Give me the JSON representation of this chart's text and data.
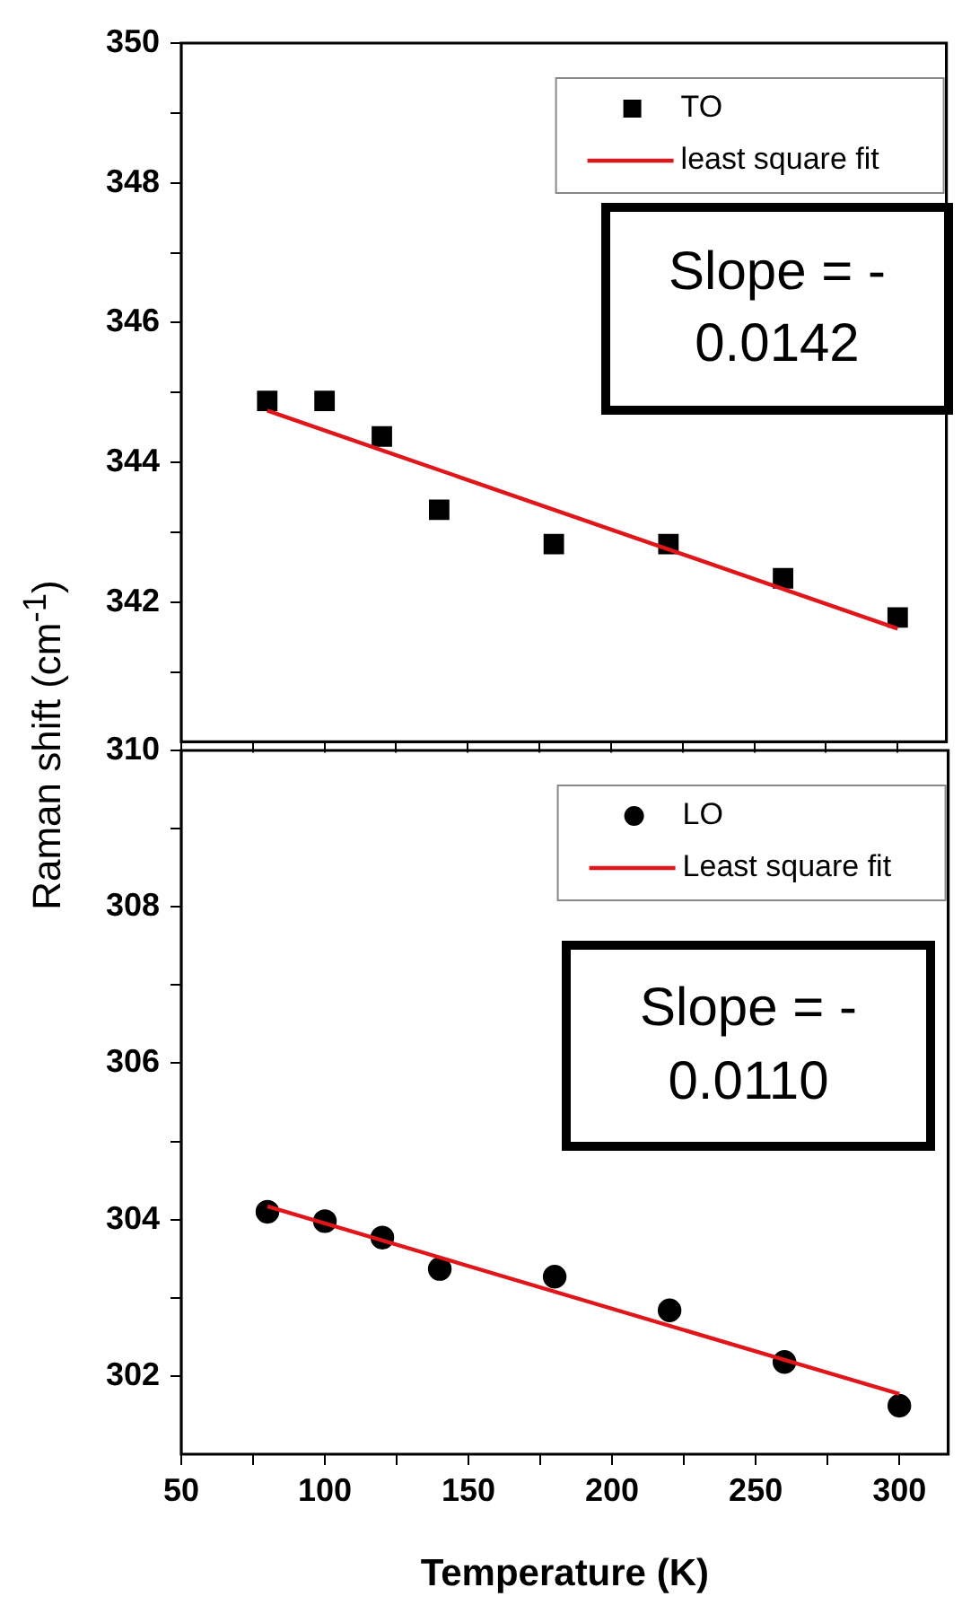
{
  "chart_data": [
    {
      "type": "scatter",
      "ylabel": "Raman shift (cm$^{-1}$)",
      "xlim": [
        50,
        317
      ],
      "xticks": [
        50,
        {
          "value": 75,
          "label": null
        },
        100,
        {
          "value": 125,
          "label": null
        },
        150,
        {
          "value": 175,
          "label": null
        },
        200,
        {
          "value": 225,
          "label": null
        },
        250,
        {
          "value": 275,
          "label": null
        },
        300
      ],
      "ylim": [
        340,
        350
      ],
      "yticks": [
        {
          "value": 341,
          "label": null
        },
        342,
        {
          "value": 343,
          "label": null
        },
        344,
        {
          "value": 345,
          "label": null
        },
        346,
        {
          "value": 347,
          "label": null
        },
        348,
        {
          "value": 349,
          "label": null
        },
        350
      ],
      "tick_labels": "y",
      "grid": false,
      "legend": "top right",
      "annotations": [
        "Slope = - 0.0142"
      ],
      "series": [
        {
          "name": "TO",
          "color": "#000000",
          "marker": "square",
          "x": [
            80,
            100,
            120,
            140,
            180,
            220,
            260,
            300
          ],
          "values": [
            344.88,
            344.88,
            344.37,
            343.32,
            342.83,
            342.83,
            342.34,
            341.78
          ]
        },
        {
          "name": "least square fit",
          "type": "line",
          "color": "#e0161b",
          "marker": "none",
          "x": [
            80,
            300
          ],
          "values": [
            344.74,
            341.62
          ]
        }
      ]
    },
    {
      "type": "scatter",
      "xlabel": "Temperature (K)",
      "xlim": [
        50,
        317
      ],
      "xticks": [
        50,
        {
          "value": 75,
          "label": null
        },
        100,
        {
          "value": 125,
          "label": null
        },
        150,
        {
          "value": 175,
          "label": null
        },
        200,
        {
          "value": 225,
          "label": null
        },
        250,
        {
          "value": 275,
          "label": null
        },
        300
      ],
      "ylim": [
        301,
        310
      ],
      "yticks": [
        302,
        {
          "value": 303,
          "label": null
        },
        304,
        {
          "value": 305,
          "label": null
        },
        306,
        {
          "value": 307,
          "label": null
        },
        308,
        {
          "value": 309,
          "label": null
        },
        310
      ],
      "grid": false,
      "legend": "top right",
      "annotations": [
        "Slope = - 0.0110"
      ],
      "series": [
        {
          "name": "LO",
          "color": "#000000",
          "marker": "circle",
          "x": [
            80,
            100,
            120,
            140,
            180,
            220,
            260,
            300
          ],
          "values": [
            304.1,
            303.98,
            303.77,
            303.37,
            303.27,
            302.84,
            302.18,
            301.62
          ]
        },
        {
          "name": "Least square fit",
          "type": "line",
          "color": "#e0161b",
          "marker": "none",
          "x": [
            80,
            300
          ],
          "values": [
            304.17,
            301.77
          ]
        }
      ]
    }
  ]
}
